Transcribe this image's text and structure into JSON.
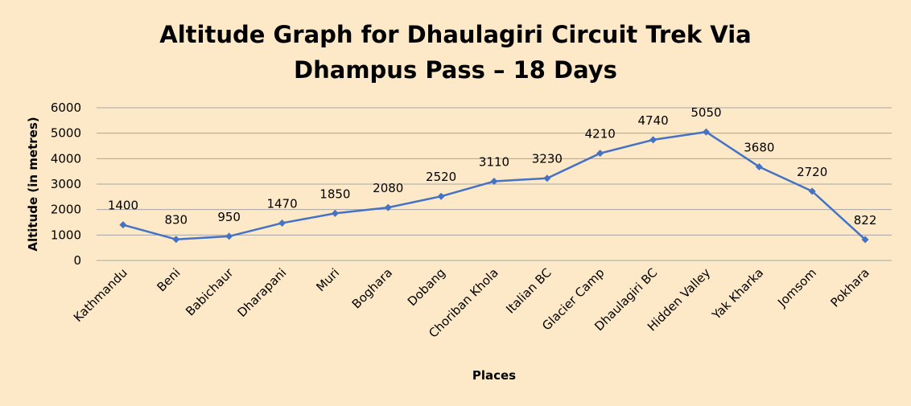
{
  "chart_data": {
    "type": "line",
    "title": "Altitude Graph for Dhaulagiri Circuit Trek Via",
    "subtitle": "Dhampus Pass – 18 Days",
    "xlabel": "Places",
    "ylabel": "Altitude (in metres)",
    "ylim": [
      0,
      6000
    ],
    "yticks": [
      0,
      1000,
      2000,
      3000,
      4000,
      5000,
      6000
    ],
    "grid": true,
    "legend": "none",
    "line_color": "#4472C4",
    "categories": [
      "Kathmandu",
      "Beni",
      "Babichaur",
      "Dharapani",
      "Muri",
      "Boghara",
      "Dobang",
      "Choriban Khola",
      "Italian BC",
      "Glacier Camp",
      "Dhaulagiri BC",
      "Hidden Valley",
      "Yak Kharka",
      "Jomsom",
      "Pokhara"
    ],
    "values": [
      1400,
      830,
      950,
      1470,
      1850,
      2080,
      2520,
      3110,
      3230,
      4210,
      4740,
      5050,
      3680,
      2720,
      822
    ]
  }
}
